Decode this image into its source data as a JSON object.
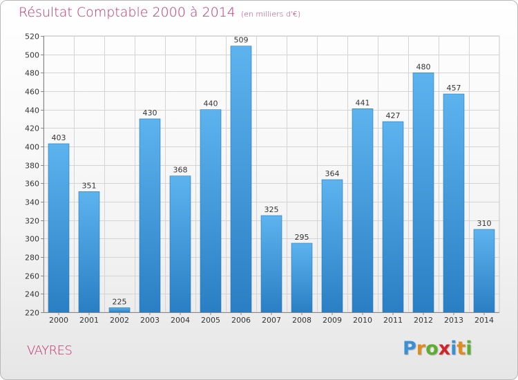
{
  "chart_data": {
    "type": "bar",
    "title": "Résultat Comptable 2000 à 2014",
    "subtitle": "(en milliers d'€)",
    "xlabel": "",
    "ylabel": "",
    "categories": [
      "2000",
      "2001",
      "2002",
      "2003",
      "2004",
      "2005",
      "2006",
      "2007",
      "2008",
      "2009",
      "2010",
      "2011",
      "2012",
      "2013",
      "2014"
    ],
    "values": [
      403,
      351,
      225,
      430,
      368,
      440,
      509,
      325,
      295,
      364,
      441,
      427,
      480,
      457,
      310
    ],
    "ylim": [
      220,
      520
    ],
    "yticks": [
      220,
      240,
      260,
      280,
      300,
      320,
      340,
      360,
      380,
      400,
      420,
      440,
      460,
      480,
      500,
      520
    ],
    "grid": true,
    "legend": "none",
    "colors": {
      "bar_top": "#5db3ee",
      "bar_bottom": "#2a7fc4",
      "grid": "#d4d4d4",
      "title": "#c0306a"
    }
  },
  "commune": "VAYRES",
  "logo": {
    "text": "Proxiti",
    "letters": [
      "P",
      "r",
      "o",
      "x",
      "i",
      "t",
      "i"
    ],
    "letter_colors": [
      "#3a8fd6",
      "#e08b1e",
      "#5cae2e",
      "#d2232a",
      "#3a8fd6",
      "#e08b1e",
      "#5cae2e"
    ]
  }
}
